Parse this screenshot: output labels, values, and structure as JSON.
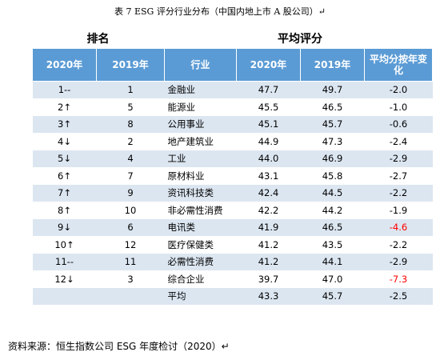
{
  "title": "表 7 ESG 评分行业分布（中国内地上市 A 股公司）↵",
  "table": {
    "group_headers": {
      "rank": "排名",
      "score": "平均评分"
    },
    "header": [
      "2020年",
      "2019年",
      "行业",
      "2020年",
      "2019年",
      "平均分按年变化"
    ],
    "rows": [
      [
        "1--",
        "1",
        "金融业",
        "47.7",
        "49.7",
        "-2.0"
      ],
      [
        "2↑",
        "5",
        "能源业",
        "45.5",
        "46.5",
        "-1.0"
      ],
      [
        "3↑",
        "8",
        "公用事业",
        "45.1",
        "45.7",
        "-0.6"
      ],
      [
        "4↓",
        "2",
        "地产建筑业",
        "44.9",
        "47.3",
        "-2.4"
      ],
      [
        "5↓",
        "4",
        "工业",
        "44.0",
        "46.9",
        "-2.9"
      ],
      [
        "6↑",
        "7",
        "原材料业",
        "43.1",
        "45.8",
        "-2.7"
      ],
      [
        "7↑",
        "9",
        "资讯科技类",
        "42.4",
        "44.5",
        "-2.2"
      ],
      [
        "8↑",
        "10",
        "非必需性消费",
        "42.2",
        "44.2",
        "-1.9"
      ],
      [
        "9↓",
        "6",
        "电讯类",
        "41.9",
        "46.5",
        "-4.6"
      ],
      [
        "10↑",
        "12",
        "医疗保健类",
        "41.2",
        "43.5",
        "-2.2"
      ],
      [
        "11--",
        "11",
        "必需性消费",
        "41.2",
        "44.1",
        "-2.9"
      ],
      [
        "12↓",
        "3",
        "综合企业",
        "39.7",
        "47.0",
        "-7.3"
      ],
      [
        "",
        "",
        "平均",
        "43.3",
        "45.7",
        "-2.5"
      ]
    ],
    "change_colors": [
      "#000000",
      "#000000",
      "#000000",
      "#000000",
      "#000000",
      "#000000",
      "#000000",
      "#000000",
      "#ff0000",
      "#000000",
      "#000000",
      "#ff0000",
      "#000000"
    ]
  },
  "source": "资料来源：恒生指数公司 ESG 年度检讨（2020）↵"
}
